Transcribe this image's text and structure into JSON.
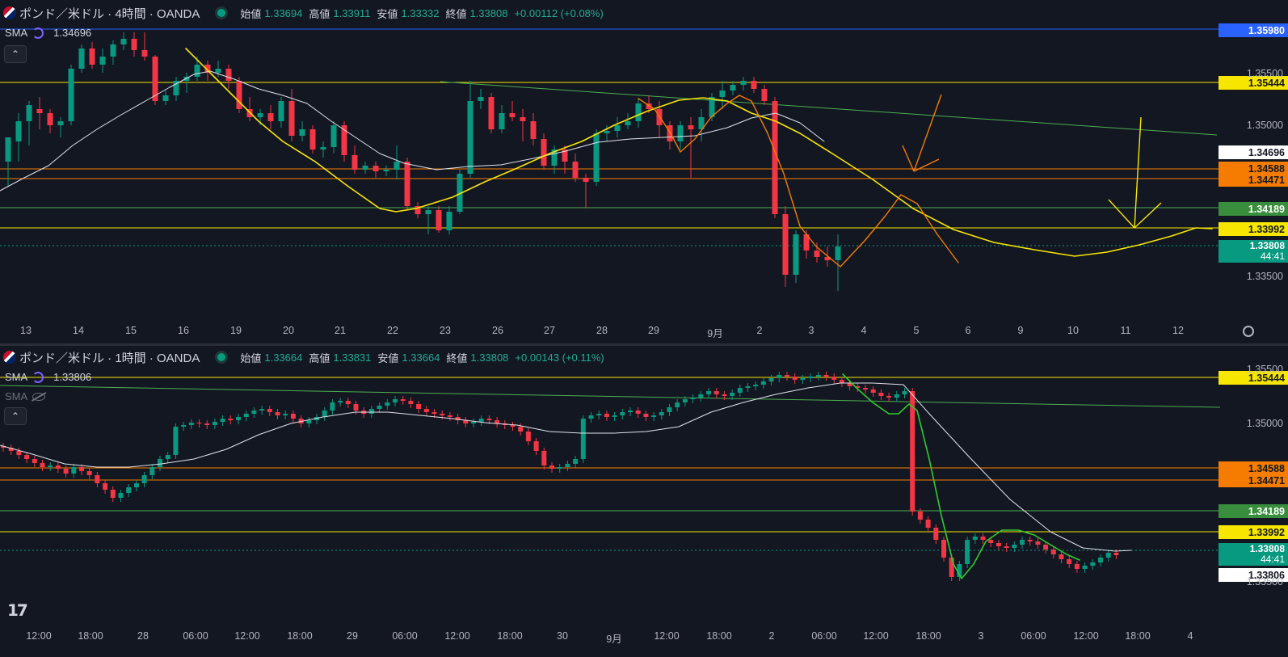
{
  "top": {
    "title": "ポンド／米ドル · 4時間 · OANDA",
    "ohlc": {
      "o_label": "始値",
      "o": "1.33694",
      "h_label": "高値",
      "h": "1.33911",
      "l_label": "安値",
      "l": "1.33332",
      "c_label": "終値",
      "c": "1.33808",
      "chg": "+0.00112 (+0.08%)"
    },
    "sma": {
      "label": "SMA",
      "value": "1.34696"
    },
    "price_labels": [
      {
        "text": "1.35980",
        "bg": "#2962ff",
        "fg": "#ffffff"
      },
      {
        "text": "1.35444",
        "bg": "#f7e600",
        "fg": "#131722"
      },
      {
        "text": "1.34696",
        "bg": "#ffffff",
        "fg": "#131722"
      },
      {
        "text": "1.34588",
        "bg": "#f57c00",
        "fg": "#131722"
      },
      {
        "text": "1.34471",
        "bg": "#f57c00",
        "fg": "#131722"
      },
      {
        "text": "1.34189",
        "bg": "#388e3c",
        "fg": "#ffffff"
      },
      {
        "text": "1.33992",
        "bg": "#f7e600",
        "fg": "#131722"
      }
    ],
    "last_price": {
      "text": "1.33808",
      "timer": "44:41"
    },
    "axis_prices": [
      "1.35500",
      "1.35000",
      "1.33500"
    ],
    "time_axis": [
      "13",
      "14",
      "15",
      "16",
      "19",
      "20",
      "21",
      "22",
      "23",
      "26",
      "27",
      "28",
      "29",
      "9月",
      "2",
      "3",
      "4",
      "5",
      "6",
      "9",
      "10",
      "11",
      "12"
    ]
  },
  "bottom": {
    "title": "ポンド／米ドル · 1時間 · OANDA",
    "ohlc": {
      "o_label": "始値",
      "o": "1.33664",
      "h_label": "高値",
      "h": "1.33831",
      "l_label": "安値",
      "l": "1.33664",
      "c_label": "終値",
      "c": "1.33808",
      "chg": "+0.00143 (+0.11%)"
    },
    "sma": {
      "label": "SMA",
      "value": "1.33806"
    },
    "sma2": {
      "label": "SMA"
    },
    "price_labels": [
      {
        "text": "1.35444",
        "bg": "#f7e600",
        "fg": "#131722"
      },
      {
        "text": "1.34588",
        "bg": "#f57c00",
        "fg": "#131722"
      },
      {
        "text": "1.34471",
        "bg": "#f57c00",
        "fg": "#131722"
      },
      {
        "text": "1.34189",
        "bg": "#388e3c",
        "fg": "#ffffff"
      },
      {
        "text": "1.33992",
        "bg": "#f7e600",
        "fg": "#131722"
      }
    ],
    "last_price": {
      "text": "1.33808",
      "timer": "44:41"
    },
    "sma_price": "1.33806",
    "axis_prices": [
      "1.35500",
      "1.35000",
      "1.33500"
    ],
    "time_axis": [
      "12:00",
      "18:00",
      "28",
      "06:00",
      "12:00",
      "18:00",
      "29",
      "06:00",
      "12:00",
      "18:00",
      "30",
      "9月",
      "12:00",
      "18:00",
      "2",
      "06:00",
      "12:00",
      "18:00",
      "3",
      "06:00",
      "12:00",
      "18:00",
      "4"
    ]
  },
  "colors": {
    "up": "#089981",
    "down": "#f23645",
    "yellow": "#f7e600",
    "orange": "#f57c00",
    "green_line": "#4caf50",
    "sma": "#e0e3eb",
    "bg": "#131722"
  },
  "icons": {
    "collapse": "chevron-up-icon",
    "settings": "gear-icon",
    "logo": "tradingview-logo"
  }
}
